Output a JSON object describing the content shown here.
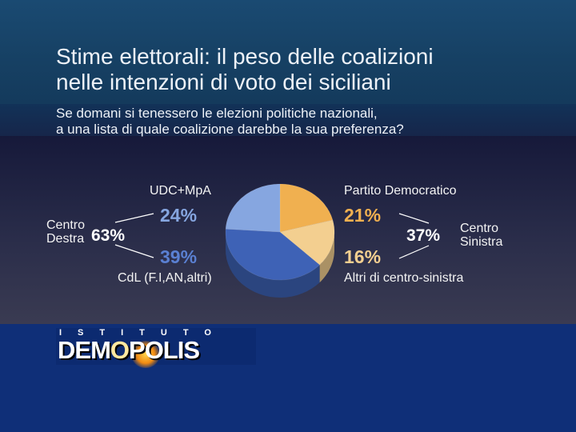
{
  "title_line1": "Stime elettorali: il peso delle coalizioni",
  "title_line2": "nelle intenzioni di voto dei siciliani",
  "subtitle_line1": "Se domani si tenessero le elezioni politiche nazionali,",
  "subtitle_line2": "a una lista di quale coalizione darebbe la sua preferenza?",
  "chart_data": {
    "type": "pie",
    "slices": [
      {
        "label": "Partito Democratico",
        "value": 21,
        "display": "21%",
        "color": "#f0b050"
      },
      {
        "label": "Altri di centro-sinistra",
        "value": 16,
        "display": "16%",
        "color": "#f3cf90"
      },
      {
        "label": "CdL (F.I,AN,altri)",
        "value": 39,
        "display": "39%",
        "color": "#3e62b6"
      },
      {
        "label": "UDC+MpA",
        "value": 24,
        "display": "24%",
        "color": "#86a6e0"
      }
    ],
    "groups": [
      {
        "name_line1": "Centro",
        "name_line2": "Destra",
        "total": "63%"
      },
      {
        "name_line1": "Centro",
        "name_line2": "Sinistra",
        "total": "37%"
      }
    ]
  },
  "logo": {
    "top_text": "ISTITUTO",
    "main_text_a": "DEM",
    "main_text_b": "O",
    "main_text_c": "POLIS"
  }
}
